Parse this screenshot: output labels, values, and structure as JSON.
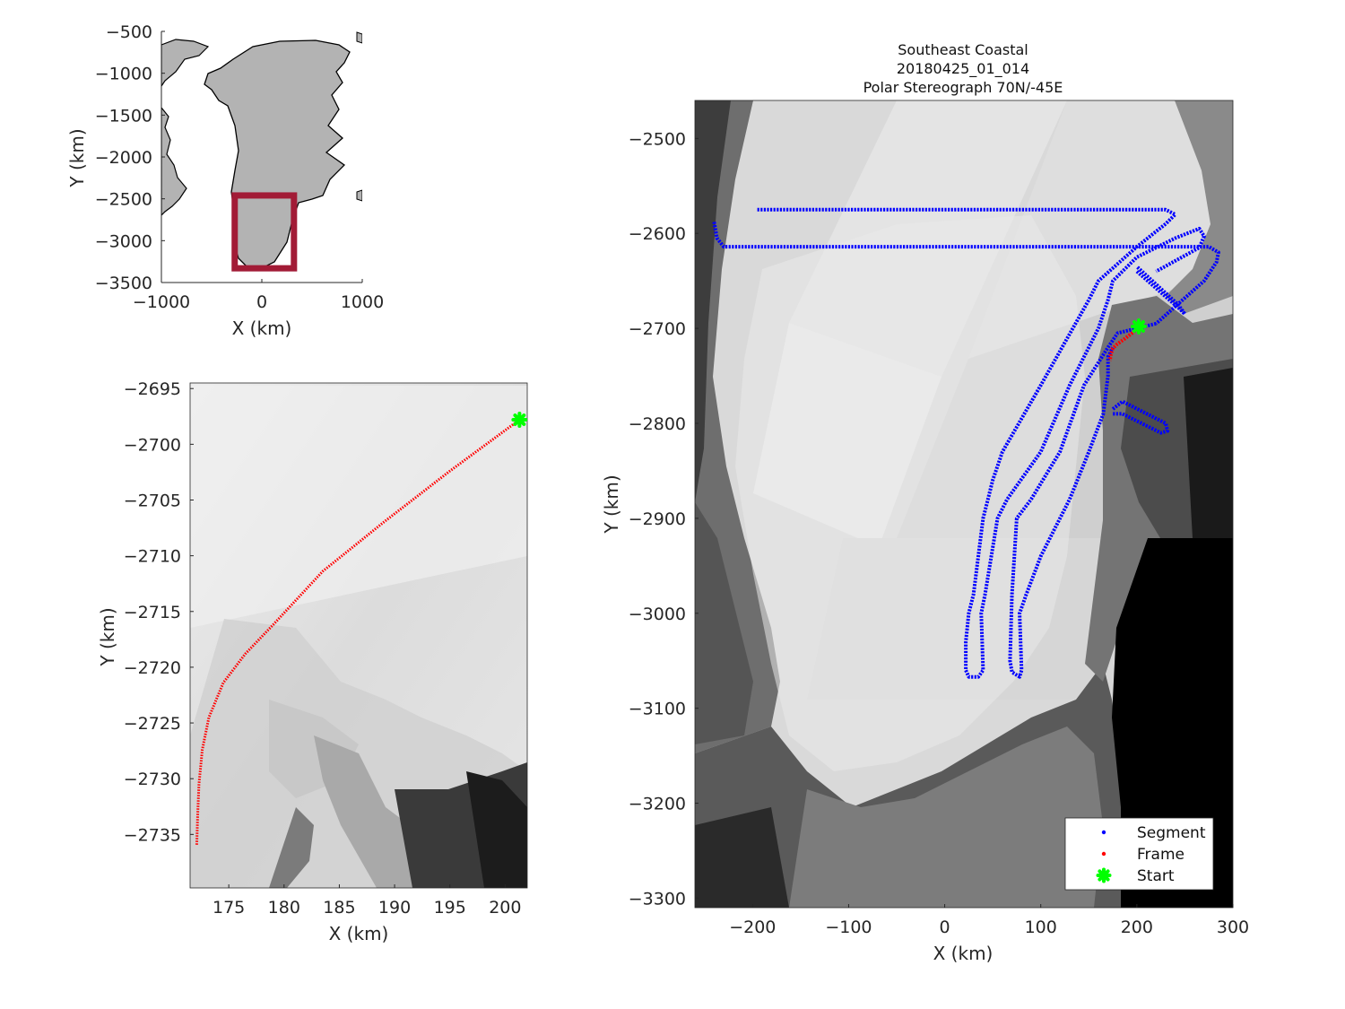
{
  "chart_data": [
    {
      "type": "map",
      "panel": "overview",
      "xlabel": "X (km)",
      "ylabel": "Y (km)",
      "xlim": [
        -1000,
        1000
      ],
      "ylim": [
        -3500,
        -500
      ],
      "x_ticks": [
        -1000,
        0,
        1000
      ],
      "y_ticks": [
        -500,
        -1000,
        -1500,
        -2000,
        -2500,
        -3000,
        -3500
      ],
      "x_tick_labels": [
        "−1000",
        "0",
        "1000"
      ],
      "y_tick_labels": [
        "−500",
        "−1000",
        "−1500",
        "−2000",
        "−2500",
        "−3000",
        "−3500"
      ],
      "land_color": "#b3b3b3",
      "coast_color": "#000000",
      "region_box": {
        "x": [
          -270,
          320
        ],
        "y": [
          -3330,
          -2460
        ],
        "color": "#a21b36"
      }
    },
    {
      "type": "map",
      "panel": "frame-zoom",
      "xlabel": "X (km)",
      "ylabel": "Y (km)",
      "xlim": [
        171.5,
        202.0
      ],
      "ylim": [
        -2739.8,
        -2694.5
      ],
      "x_ticks": [
        175,
        180,
        185,
        190,
        195,
        200
      ],
      "y_ticks": [
        -2695,
        -2700,
        -2705,
        -2710,
        -2715,
        -2720,
        -2725,
        -2730,
        -2735
      ],
      "x_tick_labels": [
        "175",
        "180",
        "185",
        "190",
        "195",
        "200"
      ],
      "y_tick_labels": [
        "−2695",
        "−2700",
        "−2705",
        "−2710",
        "−2715",
        "−2720",
        "−2725",
        "−2730",
        "−2735"
      ],
      "frame_color": "#ff0000",
      "start_color": "#00ff00",
      "frame_track": {
        "x": [
          201.3,
          195,
          189,
          183.5,
          179,
          176.5,
          174.5,
          173.2,
          172.6,
          172.3,
          172.2,
          172.1
        ],
        "y": [
          -2697.8,
          -2702.4,
          -2707.0,
          -2711.4,
          -2716.2,
          -2718.8,
          -2721.4,
          -2724.5,
          -2727.4,
          -2730.5,
          -2733.0,
          -2736.0
        ]
      },
      "start_point": {
        "x": 201.3,
        "y": -2697.8
      }
    },
    {
      "type": "map",
      "panel": "segment",
      "title_lines": [
        "Southeast Coastal",
        "20180425_01_014",
        "Polar Stereograph 70N/-45E"
      ],
      "xlabel": "X (km)",
      "ylabel": "Y (km)",
      "xlim": [
        -260,
        300
      ],
      "ylim": [
        -3310,
        -2460
      ],
      "x_ticks": [
        -200,
        -100,
        0,
        100,
        200,
        300
      ],
      "y_ticks": [
        -2500,
        -2600,
        -2700,
        -2800,
        -2900,
        -3000,
        -3100,
        -3200,
        -3300
      ],
      "x_tick_labels": [
        "−200",
        "−100",
        "0",
        "100",
        "200",
        "300"
      ],
      "y_tick_labels": [
        "−2500",
        "−2600",
        "−2700",
        "−2800",
        "−2900",
        "−3000",
        "−3100",
        "−3200",
        "−3300"
      ],
      "legend": {
        "placement": "bottom-right",
        "entries": [
          {
            "label": "Segment",
            "color": "#0000ff",
            "marker": "dot"
          },
          {
            "label": "Frame",
            "color": "#ff0000",
            "marker": "dot"
          },
          {
            "label": "Start",
            "color": "#00ff00",
            "marker": "star"
          }
        ]
      },
      "segment_tracks": [
        {
          "x": [
            -195,
            230,
            240,
            230,
            200,
            160,
            150,
            100,
            60,
            50,
            45,
            40,
            30,
            25,
            22,
            22
          ],
          "y": [
            -2575,
            -2575,
            -2580,
            -2590,
            -2614,
            -2650,
            -2670,
            -2760,
            -2830,
            -2860,
            -2880,
            -2900,
            -2980,
            -3000,
            -3030,
            -3060
          ]
        },
        {
          "x": [
            22,
            25,
            35,
            40,
            38,
            42,
            55,
            65,
            100,
            130,
            160,
            170,
            175,
            200,
            240,
            265,
            270,
            265,
            220
          ],
          "y": [
            -3060,
            -3067,
            -3067,
            -3060,
            -3000,
            -2980,
            -2900,
            -2880,
            -2830,
            -2760,
            -2700,
            -2670,
            -2650,
            -2625,
            -2605,
            -2595,
            -2603,
            -2615,
            -2640
          ]
        },
        {
          "x": [
            -240,
            -237,
            -230,
            275,
            285,
            283,
            270,
            250,
            220
          ],
          "y": [
            -2588,
            -2605,
            -2614,
            -2614,
            -2620,
            -2630,
            -2650,
            -2668,
            -2695
          ]
        },
        {
          "x": [
            220,
            180,
            170,
            145,
            120,
            90,
            75,
            70,
            68,
            70,
            78,
            80,
            78,
            85,
            100,
            130,
            150,
            165,
            170,
            170,
            175
          ],
          "y": [
            -2695,
            -2705,
            -2720,
            -2760,
            -2830,
            -2880,
            -2900,
            -2980,
            -3050,
            -3062,
            -3067,
            -3060,
            -3000,
            -2980,
            -2940,
            -2880,
            -2830,
            -2790,
            -2750,
            -2730,
            -2720
          ]
        },
        {
          "x": [
            200,
            245,
            250,
            243,
            200
          ],
          "y": [
            -2640,
            -2680,
            -2685,
            -2675,
            -2635
          ]
        },
        {
          "x": [
            175,
            185,
            230,
            232,
            225,
            185,
            175
          ],
          "y": [
            -2785,
            -2777,
            -2800,
            -2808,
            -2810,
            -2790,
            -2790
          ]
        }
      ],
      "frame_track": {
        "x": [
          203,
          195,
          186,
          179,
          175,
          173,
          172
        ],
        "y": [
          -2698,
          -2705,
          -2712,
          -2717,
          -2721,
          -2727,
          -2734
        ]
      },
      "start_point": {
        "x": 202,
        "y": -2698
      }
    }
  ]
}
